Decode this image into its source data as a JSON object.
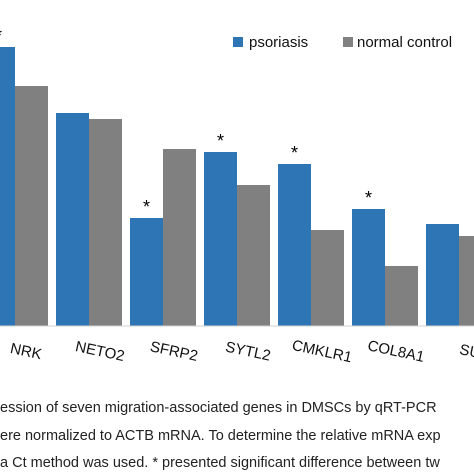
{
  "chart_data": {
    "type": "bar",
    "title": "",
    "xlabel": "",
    "ylabel": "",
    "ylim": [
      0,
      10
    ],
    "categories": [
      "NRK",
      "NETO2",
      "SFRP2",
      "SYTL2",
      "CMKLR1",
      "COL8A1",
      "SU"
    ],
    "series": [
      {
        "name": "psoriasis",
        "color": "#2e75b6",
        "values": [
          9.3,
          7.1,
          3.6,
          5.8,
          5.4,
          3.9,
          3.4
        ]
      },
      {
        "name": "normal control",
        "color": "#808080",
        "values": [
          8.0,
          6.9,
          5.9,
          4.7,
          3.2,
          2.0,
          3.0
        ]
      }
    ],
    "significant": [
      true,
      false,
      true,
      true,
      true,
      true,
      false
    ],
    "significance_marker": "*",
    "legend_position": "top-right",
    "grid": false
  },
  "caption": {
    "line1": "ession of seven migration-associated genes  in DMSCs by qRT-PCR",
    "line2": "ere normalized to ACTB mRNA. To determine the relative mRNA exp",
    "line3": "a Ct method was used.  * presented significant difference between tw"
  }
}
